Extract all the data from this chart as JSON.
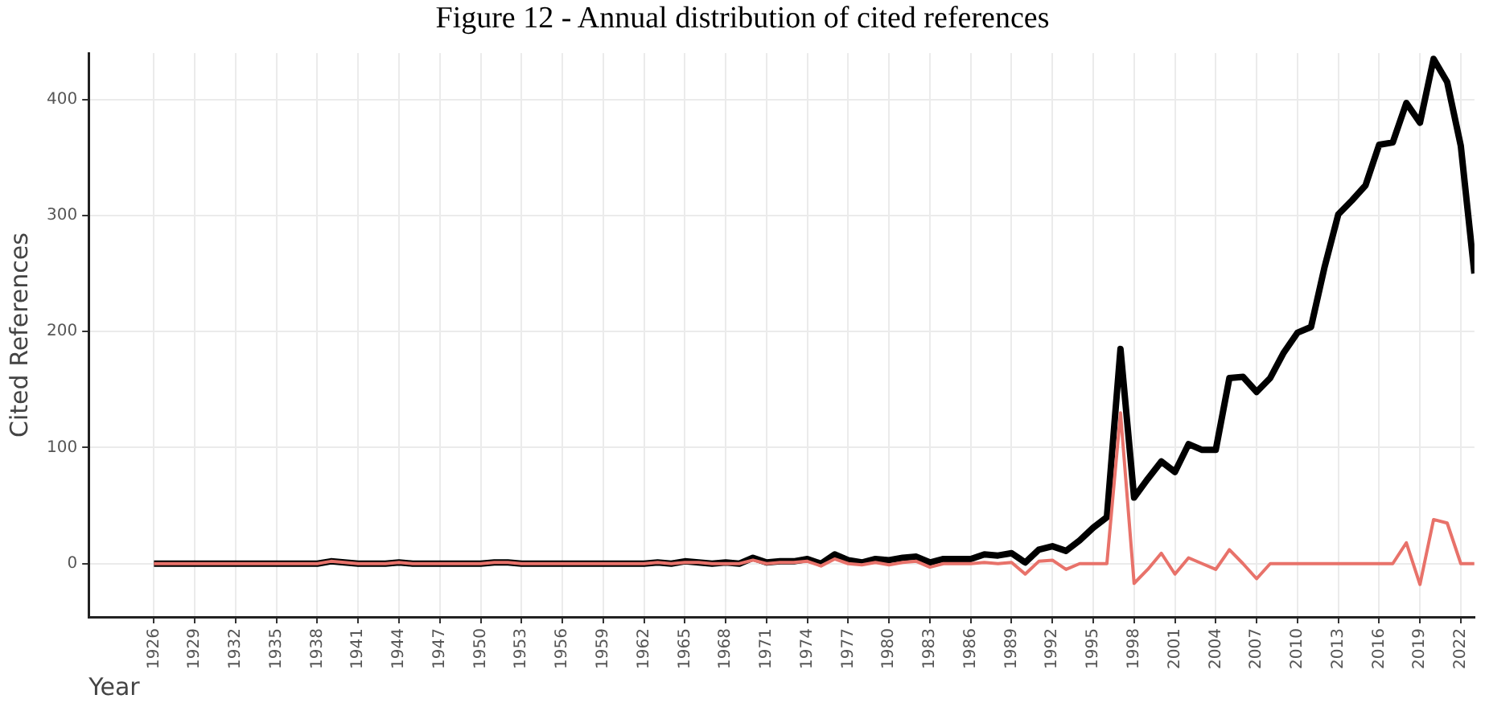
{
  "chart_data": {
    "type": "line",
    "title": "Figure 12 - Annual distribution of cited references",
    "xlabel": "Year",
    "ylabel": "Cited References",
    "x": [
      1926,
      1927,
      1928,
      1929,
      1930,
      1931,
      1932,
      1933,
      1934,
      1935,
      1936,
      1937,
      1938,
      1939,
      1940,
      1941,
      1942,
      1943,
      1944,
      1945,
      1946,
      1947,
      1948,
      1949,
      1950,
      1951,
      1952,
      1953,
      1954,
      1955,
      1956,
      1957,
      1958,
      1959,
      1960,
      1961,
      1962,
      1963,
      1964,
      1965,
      1966,
      1967,
      1968,
      1969,
      1970,
      1971,
      1972,
      1973,
      1974,
      1975,
      1976,
      1977,
      1978,
      1979,
      1980,
      1981,
      1982,
      1983,
      1984,
      1985,
      1986,
      1987,
      1988,
      1989,
      1990,
      1991,
      1992,
      1993,
      1994,
      1995,
      1996,
      1997,
      1998,
      1999,
      2000,
      2001,
      2002,
      2003,
      2004,
      2005,
      2006,
      2007,
      2008,
      2009,
      2010,
      2011,
      2012,
      2013,
      2014,
      2015,
      2016,
      2017,
      2018,
      2019,
      2020,
      2021,
      2022,
      2023
    ],
    "series": [
      {
        "color": "#000000",
        "values": [
          0,
          0,
          0,
          0,
          0,
          0,
          0,
          0,
          0,
          0,
          0,
          0,
          0,
          2,
          1,
          0,
          0,
          0,
          1,
          0,
          0,
          0,
          0,
          0,
          0,
          1,
          1,
          0,
          0,
          0,
          0,
          0,
          0,
          0,
          0,
          0,
          0,
          1,
          0,
          2,
          1,
          0,
          1,
          0,
          5,
          1,
          2,
          2,
          4,
          0,
          8,
          3,
          1,
          4,
          3,
          5,
          6,
          1,
          4,
          4,
          4,
          8,
          7,
          9,
          1,
          12,
          15,
          11,
          20,
          31,
          40,
          185,
          57,
          73,
          88,
          79,
          103,
          98,
          98,
          160,
          161,
          148,
          160,
          182,
          199,
          204,
          256,
          301,
          313,
          326,
          361,
          363,
          397,
          380,
          435,
          415,
          360,
          250
        ]
      },
      {
        "color": "#e8726a",
        "values": [
          0,
          0,
          0,
          0,
          0,
          0,
          0,
          0,
          0,
          0,
          0,
          0,
          0,
          2,
          1,
          0,
          0,
          0,
          1,
          0,
          0,
          0,
          0,
          0,
          0,
          1,
          1,
          0,
          0,
          0,
          0,
          0,
          0,
          0,
          0,
          0,
          0,
          1,
          0,
          1,
          1,
          0,
          0,
          0,
          3,
          0,
          1,
          1,
          2,
          -2,
          4,
          0,
          -1,
          1,
          -1,
          1,
          2,
          -3,
          0,
          0,
          0,
          1,
          0,
          1,
          -9,
          2,
          3,
          -5,
          0,
          0,
          0,
          130,
          -17,
          -5,
          9,
          -9,
          5,
          0,
          -5,
          12,
          0,
          -13,
          0,
          0,
          0,
          0,
          0,
          0,
          0,
          0,
          0,
          0,
          18,
          -18,
          38,
          35,
          0,
          0
        ]
      }
    ],
    "xlim": [
      1921.2,
      2023
    ],
    "xticks": [
      1926,
      1929,
      1932,
      1935,
      1938,
      1941,
      1944,
      1947,
      1950,
      1953,
      1956,
      1959,
      1962,
      1965,
      1968,
      1971,
      1974,
      1977,
      1980,
      1983,
      1986,
      1989,
      1992,
      1995,
      1998,
      2001,
      2004,
      2007,
      2010,
      2013,
      2016,
      2019,
      2022
    ],
    "ylim": [
      -46,
      440
    ],
    "yticks": [
      0,
      100,
      200,
      300,
      400
    ],
    "grid": true,
    "marker": "none",
    "line_style": "solid"
  }
}
